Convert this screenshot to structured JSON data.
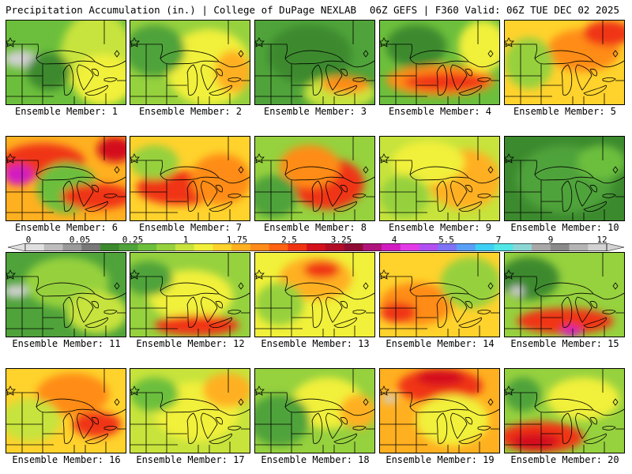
{
  "header": {
    "left": "Precipitation Accumulation (in.) | College of DuPage NEXLAB",
    "right": "06Z GEFS | F360 Valid: 06Z TUE DEC 02 2025"
  },
  "colorbar": {
    "labels": [
      "0",
      "0.05",
      "0.25",
      "1",
      "1.75",
      "2.5",
      "3.25",
      "4",
      "5.5",
      "7",
      "9",
      "12"
    ],
    "colors": [
      "#e0e0e0",
      "#bdbdbd",
      "#9a9a9a",
      "#787878",
      "#3c8a2e",
      "#4fa33a",
      "#6cbf3c",
      "#96d13e",
      "#c7e33c",
      "#f1f03a",
      "#ffd22c",
      "#ffb020",
      "#ff8c18",
      "#ff6210",
      "#f03412",
      "#d4101c",
      "#b20d26",
      "#900b34",
      "#b0147a",
      "#d21cc2",
      "#e33ae8",
      "#b24ff2",
      "#7d73f4",
      "#5a9ff6",
      "#3cd0f4",
      "#52e6e6",
      "#8cd6d6",
      "#a8a8a8",
      "#8a8a8a",
      "#b4b4b4",
      "#d2d2d2"
    ]
  },
  "members": [
    {
      "label": "Ensemble Member: 1",
      "bg": "#6cbf3c",
      "blobs": [
        [
          "#c7e33c",
          0.75,
          0.4,
          0.3,
          0.5
        ],
        [
          "#f1f03a",
          0.8,
          0.7,
          0.25,
          0.3
        ],
        [
          "#d0d0d0",
          0.12,
          0.45,
          0.14,
          0.1
        ],
        [
          "#3c8a2e",
          0.35,
          0.6,
          0.18,
          0.22
        ]
      ]
    },
    {
      "label": "Ensemble Member: 2",
      "bg": "#96d13e",
      "blobs": [
        [
          "#f1f03a",
          0.65,
          0.55,
          0.35,
          0.45
        ],
        [
          "#ffb020",
          0.85,
          0.6,
          0.15,
          0.25
        ],
        [
          "#4fa33a",
          0.2,
          0.35,
          0.25,
          0.3
        ]
      ]
    },
    {
      "label": "Ensemble Member: 3",
      "bg": "#4fa33a",
      "blobs": [
        [
          "#3c8a2e",
          0.45,
          0.4,
          0.35,
          0.35
        ],
        [
          "#c7e33c",
          0.7,
          0.85,
          0.3,
          0.2
        ],
        [
          "#ff8c18",
          0.75,
          0.75,
          0.2,
          0.1
        ]
      ]
    },
    {
      "label": "Ensemble Member: 4",
      "bg": "#6cbf3c",
      "blobs": [
        [
          "#ff8c18",
          0.5,
          0.7,
          0.45,
          0.18
        ],
        [
          "#f03412",
          0.55,
          0.72,
          0.35,
          0.1
        ],
        [
          "#3c8a2e",
          0.3,
          0.3,
          0.25,
          0.25
        ],
        [
          "#f1f03a",
          0.85,
          0.3,
          0.2,
          0.3
        ]
      ]
    },
    {
      "label": "Ensemble Member: 5",
      "bg": "#ffd22c",
      "blobs": [
        [
          "#ff8c18",
          0.65,
          0.35,
          0.3,
          0.25
        ],
        [
          "#f03412",
          0.85,
          0.15,
          0.2,
          0.15
        ],
        [
          "#96d13e",
          0.2,
          0.5,
          0.2,
          0.3
        ]
      ]
    },
    {
      "label": "Ensemble Member: 6",
      "bg": "#ffb020",
      "blobs": [
        [
          "#f03412",
          0.3,
          0.3,
          0.35,
          0.22
        ],
        [
          "#d21cc2",
          0.1,
          0.45,
          0.12,
          0.12
        ],
        [
          "#6cbf3c",
          0.5,
          0.6,
          0.25,
          0.3
        ],
        [
          "#f03412",
          0.75,
          0.7,
          0.3,
          0.15
        ],
        [
          "#d4101c",
          0.9,
          0.15,
          0.15,
          0.15
        ]
      ]
    },
    {
      "label": "Ensemble Member: 7",
      "bg": "#ffd22c",
      "blobs": [
        [
          "#f03412",
          0.4,
          0.6,
          0.35,
          0.2
        ],
        [
          "#ff8c18",
          0.75,
          0.5,
          0.25,
          0.3
        ],
        [
          "#96d13e",
          0.2,
          0.3,
          0.2,
          0.2
        ]
      ]
    },
    {
      "label": "Ensemble Member: 8",
      "bg": "#96d13e",
      "blobs": [
        [
          "#f03412",
          0.6,
          0.55,
          0.3,
          0.3
        ],
        [
          "#ff8c18",
          0.45,
          0.35,
          0.25,
          0.25
        ],
        [
          "#4fa33a",
          0.15,
          0.7,
          0.2,
          0.25
        ]
      ]
    },
    {
      "label": "Ensemble Member: 9",
      "bg": "#c7e33c",
      "blobs": [
        [
          "#ffb020",
          0.7,
          0.5,
          0.3,
          0.35
        ],
        [
          "#f1f03a",
          0.4,
          0.3,
          0.3,
          0.25
        ],
        [
          "#96d13e",
          0.2,
          0.7,
          0.2,
          0.25
        ]
      ]
    },
    {
      "label": "Ensemble Member: 10",
      "bg": "#3c8a2e",
      "blobs": [
        [
          "#4fa33a",
          0.5,
          0.5,
          0.4,
          0.4
        ],
        [
          "#6cbf3c",
          0.8,
          0.3,
          0.2,
          0.2
        ]
      ]
    },
    {
      "label": "Ensemble Member: 11",
      "bg": "#4fa33a",
      "blobs": [
        [
          "#96d13e",
          0.5,
          0.35,
          0.35,
          0.3
        ],
        [
          "#d0d0d0",
          0.08,
          0.45,
          0.1,
          0.08
        ],
        [
          "#c7e33c",
          0.75,
          0.7,
          0.25,
          0.25
        ]
      ]
    },
    {
      "label": "Ensemble Member: 12",
      "bg": "#96d13e",
      "blobs": [
        [
          "#f1f03a",
          0.5,
          0.5,
          0.35,
          0.3
        ],
        [
          "#f03412",
          0.55,
          0.85,
          0.35,
          0.12
        ],
        [
          "#4fa33a",
          0.15,
          0.3,
          0.2,
          0.2
        ]
      ]
    },
    {
      "label": "Ensemble Member: 13",
      "bg": "#f1f03a",
      "blobs": [
        [
          "#ffb020",
          0.5,
          0.3,
          0.3,
          0.25
        ],
        [
          "#f03412",
          0.55,
          0.2,
          0.15,
          0.1
        ],
        [
          "#96d13e",
          0.2,
          0.6,
          0.2,
          0.25
        ]
      ]
    },
    {
      "label": "Ensemble Member: 14",
      "bg": "#ffd22c",
      "blobs": [
        [
          "#ff8c18",
          0.3,
          0.6,
          0.3,
          0.25
        ],
        [
          "#f03412",
          0.15,
          0.7,
          0.15,
          0.12
        ],
        [
          "#96d13e",
          0.75,
          0.35,
          0.25,
          0.3
        ]
      ]
    },
    {
      "label": "Ensemble Member: 15",
      "bg": "#96d13e",
      "blobs": [
        [
          "#f03412",
          0.5,
          0.8,
          0.4,
          0.15
        ],
        [
          "#d21cc2",
          0.55,
          0.92,
          0.08,
          0.06
        ],
        [
          "#3c8a2e",
          0.2,
          0.3,
          0.25,
          0.25
        ],
        [
          "#d0d0d0",
          0.1,
          0.45,
          0.06,
          0.06
        ]
      ]
    },
    {
      "label": "Ensemble Member: 16",
      "bg": "#ffd22c",
      "blobs": [
        [
          "#ff8c18",
          0.55,
          0.3,
          0.3,
          0.25
        ],
        [
          "#f03412",
          0.75,
          0.65,
          0.2,
          0.15
        ],
        [
          "#c7e33c",
          0.2,
          0.6,
          0.25,
          0.25
        ]
      ]
    },
    {
      "label": "Ensemble Member: 17",
      "bg": "#c7e33c",
      "blobs": [
        [
          "#f1f03a",
          0.55,
          0.5,
          0.35,
          0.35
        ],
        [
          "#ffb020",
          0.8,
          0.25,
          0.2,
          0.2
        ],
        [
          "#6cbf3c",
          0.2,
          0.3,
          0.2,
          0.2
        ]
      ]
    },
    {
      "label": "Ensemble Member: 18",
      "bg": "#96d13e",
      "blobs": [
        [
          "#f1f03a",
          0.6,
          0.4,
          0.3,
          0.3
        ],
        [
          "#4fa33a",
          0.2,
          0.6,
          0.25,
          0.3
        ],
        [
          "#ffb020",
          0.85,
          0.5,
          0.15,
          0.2
        ]
      ]
    },
    {
      "label": "Ensemble Member: 19",
      "bg": "#ffb020",
      "blobs": [
        [
          "#f03412",
          0.5,
          0.2,
          0.35,
          0.2
        ],
        [
          "#d4101c",
          0.5,
          0.1,
          0.2,
          0.1
        ],
        [
          "#f1f03a",
          0.6,
          0.6,
          0.3,
          0.3
        ],
        [
          "#d0d0d0",
          0.08,
          0.35,
          0.06,
          0.05
        ]
      ]
    },
    {
      "label": "Ensemble Member: 20",
      "bg": "#96d13e",
      "blobs": [
        [
          "#f03412",
          0.3,
          0.8,
          0.35,
          0.18
        ],
        [
          "#d4101c",
          0.25,
          0.85,
          0.2,
          0.1
        ],
        [
          "#f1f03a",
          0.65,
          0.35,
          0.3,
          0.25
        ],
        [
          "#4fa33a",
          0.15,
          0.3,
          0.15,
          0.2
        ]
      ]
    }
  ]
}
